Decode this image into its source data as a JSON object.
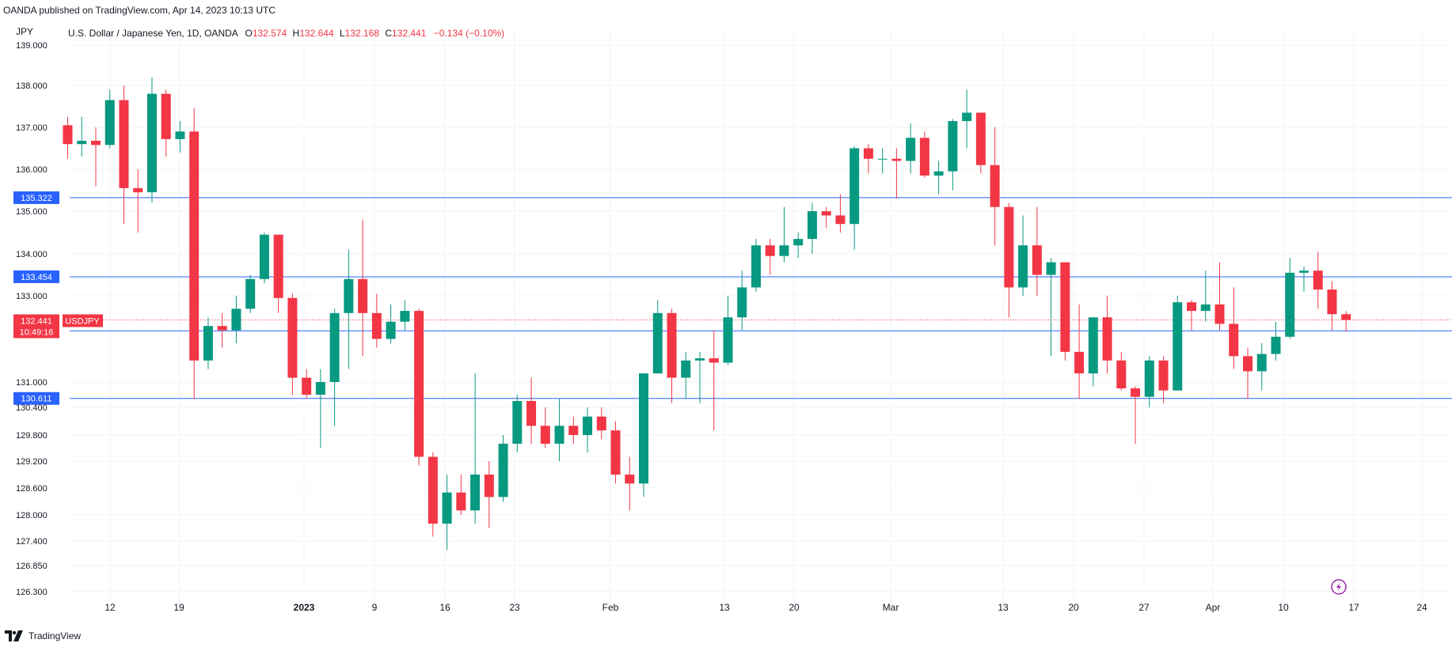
{
  "header": {
    "publish_text": "OANDA published on TradingView.com, Apr 14, 2023 10:13 UTC",
    "currency_unit": "JPY"
  },
  "legend": {
    "symbol_desc": "U.S. Dollar / Japanese Yen, 1D, OANDA",
    "open_label": "O",
    "open_value": "132.574",
    "high_label": "H",
    "high_value": "132.644",
    "low_label": "L",
    "low_value": "132.168",
    "close_label": "C",
    "close_value": "132.441",
    "change_text": "−0.134 (−0.10%)"
  },
  "price_badge": {
    "price": "132.441",
    "countdown": "10:49:16",
    "symbol": "USDJPY"
  },
  "footer": {
    "brand": "TradingView"
  },
  "colors": {
    "up": "#089981",
    "down": "#f23645",
    "hline": "#2962ff",
    "grid": "#f0f3fa",
    "text": "#131722",
    "price_line": "#f23645",
    "flash_icon": "#9c27b0"
  },
  "icons": {
    "flash": "lightning-icon",
    "logo": "tradingview-logo-icon"
  },
  "chart_data": {
    "type": "candlestick",
    "symbol": "USDJPY",
    "interval": "1D",
    "y_ticks": [
      "139.000",
      "138.000",
      "137.000",
      "136.000",
      "135.000",
      "134.000",
      "133.000",
      "131.000",
      "130.400",
      "129.800",
      "129.200",
      "128.600",
      "128.000",
      "127.400",
      "126.850",
      "126.300"
    ],
    "x_ticks": [
      "12",
      "19",
      "2023",
      "9",
      "16",
      "23",
      "Feb",
      "13",
      "20",
      "Mar",
      "13",
      "20",
      "27",
      "Apr",
      "10",
      "17",
      "24"
    ],
    "horizontal_lines": [
      "135.322",
      "133.454",
      "132.188",
      "130.611"
    ],
    "current_price": 132.441,
    "candles": [
      {
        "o": 137.05,
        "h": 137.25,
        "l": 136.25,
        "c": 136.6
      },
      {
        "o": 136.6,
        "h": 137.25,
        "l": 136.3,
        "c": 136.68
      },
      {
        "o": 136.68,
        "h": 137.0,
        "l": 135.6,
        "c": 136.58
      },
      {
        "o": 136.58,
        "h": 137.9,
        "l": 136.5,
        "c": 137.65
      },
      {
        "o": 137.65,
        "h": 138.0,
        "l": 134.7,
        "c": 135.55
      },
      {
        "o": 135.55,
        "h": 136.0,
        "l": 134.5,
        "c": 135.45
      },
      {
        "o": 135.45,
        "h": 138.2,
        "l": 135.2,
        "c": 137.8
      },
      {
        "o": 137.8,
        "h": 137.9,
        "l": 136.3,
        "c": 136.72
      },
      {
        "o": 136.72,
        "h": 137.15,
        "l": 136.4,
        "c": 136.9
      },
      {
        "o": 136.9,
        "h": 137.45,
        "l": 130.6,
        "c": 131.5
      },
      {
        "o": 131.5,
        "h": 132.5,
        "l": 131.3,
        "c": 132.3
      },
      {
        "o": 132.3,
        "h": 132.6,
        "l": 131.8,
        "c": 132.2
      },
      {
        "o": 132.2,
        "h": 133.0,
        "l": 131.9,
        "c": 132.7
      },
      {
        "o": 132.7,
        "h": 133.5,
        "l": 132.6,
        "c": 133.4
      },
      {
        "o": 133.4,
        "h": 134.5,
        "l": 133.3,
        "c": 134.45
      },
      {
        "o": 134.45,
        "h": 134.45,
        "l": 132.6,
        "c": 132.95
      },
      {
        "o": 132.95,
        "h": 133.05,
        "l": 130.7,
        "c": 131.1
      },
      {
        "o": 131.1,
        "h": 131.3,
        "l": 130.6,
        "c": 130.7
      },
      {
        "o": 130.7,
        "h": 131.3,
        "l": 129.5,
        "c": 131.0
      },
      {
        "o": 131.0,
        "h": 132.7,
        "l": 130.0,
        "c": 132.6
      },
      {
        "o": 132.6,
        "h": 134.1,
        "l": 131.3,
        "c": 133.4
      },
      {
        "o": 133.4,
        "h": 134.8,
        "l": 131.6,
        "c": 132.6
      },
      {
        "o": 132.6,
        "h": 133.05,
        "l": 131.8,
        "c": 132.0
      },
      {
        "o": 132.0,
        "h": 132.8,
        "l": 131.9,
        "c": 132.4
      },
      {
        "o": 132.4,
        "h": 132.9,
        "l": 132.2,
        "c": 132.65
      },
      {
        "o": 132.65,
        "h": 132.7,
        "l": 129.1,
        "c": 129.3
      },
      {
        "o": 129.3,
        "h": 129.4,
        "l": 127.5,
        "c": 127.8
      },
      {
        "o": 127.8,
        "h": 128.9,
        "l": 127.2,
        "c": 128.5
      },
      {
        "o": 128.5,
        "h": 128.9,
        "l": 128.0,
        "c": 128.1
      },
      {
        "o": 128.1,
        "h": 131.2,
        "l": 127.8,
        "c": 128.9
      },
      {
        "o": 128.9,
        "h": 129.2,
        "l": 127.7,
        "c": 128.4
      },
      {
        "o": 128.4,
        "h": 129.8,
        "l": 128.3,
        "c": 129.6
      },
      {
        "o": 129.6,
        "h": 130.7,
        "l": 129.4,
        "c": 130.55
      },
      {
        "o": 130.55,
        "h": 131.1,
        "l": 129.6,
        "c": 130.0
      },
      {
        "o": 130.0,
        "h": 130.4,
        "l": 129.5,
        "c": 129.6
      },
      {
        "o": 129.6,
        "h": 130.6,
        "l": 129.2,
        "c": 130.0
      },
      {
        "o": 130.0,
        "h": 130.2,
        "l": 129.6,
        "c": 129.8
      },
      {
        "o": 129.8,
        "h": 130.4,
        "l": 129.4,
        "c": 130.2
      },
      {
        "o": 130.2,
        "h": 130.4,
        "l": 129.7,
        "c": 129.9
      },
      {
        "o": 129.9,
        "h": 130.1,
        "l": 128.7,
        "c": 128.9
      },
      {
        "o": 128.9,
        "h": 129.3,
        "l": 128.1,
        "c": 128.7
      },
      {
        "o": 128.7,
        "h": 131.2,
        "l": 128.4,
        "c": 131.2
      },
      {
        "o": 131.2,
        "h": 132.9,
        "l": 131.2,
        "c": 132.6
      },
      {
        "o": 132.6,
        "h": 132.7,
        "l": 130.5,
        "c": 131.1
      },
      {
        "o": 131.1,
        "h": 131.7,
        "l": 130.6,
        "c": 131.5
      },
      {
        "o": 131.5,
        "h": 131.7,
        "l": 130.5,
        "c": 131.55
      },
      {
        "o": 131.55,
        "h": 132.2,
        "l": 129.9,
        "c": 131.45
      },
      {
        "o": 131.45,
        "h": 133.0,
        "l": 131.4,
        "c": 132.5
      },
      {
        "o": 132.5,
        "h": 133.6,
        "l": 132.2,
        "c": 133.2
      },
      {
        "o": 133.2,
        "h": 134.35,
        "l": 133.1,
        "c": 134.2
      },
      {
        "o": 134.2,
        "h": 134.35,
        "l": 133.5,
        "c": 133.95
      },
      {
        "o": 133.95,
        "h": 135.1,
        "l": 133.8,
        "c": 134.2
      },
      {
        "o": 134.2,
        "h": 134.5,
        "l": 133.9,
        "c": 134.35
      },
      {
        "o": 134.35,
        "h": 135.2,
        "l": 134.0,
        "c": 135.0
      },
      {
        "o": 135.0,
        "h": 135.1,
        "l": 134.6,
        "c": 134.9
      },
      {
        "o": 134.9,
        "h": 135.4,
        "l": 134.5,
        "c": 134.7
      },
      {
        "o": 134.7,
        "h": 136.55,
        "l": 134.1,
        "c": 136.5
      },
      {
        "o": 136.5,
        "h": 136.6,
        "l": 135.9,
        "c": 136.25
      },
      {
        "o": 136.25,
        "h": 136.5,
        "l": 135.9,
        "c": 136.25
      },
      {
        "o": 136.25,
        "h": 136.5,
        "l": 135.3,
        "c": 136.2
      },
      {
        "o": 136.2,
        "h": 137.1,
        "l": 135.9,
        "c": 136.75
      },
      {
        "o": 136.75,
        "h": 136.9,
        "l": 135.8,
        "c": 135.85
      },
      {
        "o": 135.85,
        "h": 136.2,
        "l": 135.4,
        "c": 135.95
      },
      {
        "o": 135.95,
        "h": 137.2,
        "l": 135.5,
        "c": 137.15
      },
      {
        "o": 137.15,
        "h": 137.9,
        "l": 136.5,
        "c": 137.35
      },
      {
        "o": 137.35,
        "h": 137.35,
        "l": 135.9,
        "c": 136.1
      },
      {
        "o": 136.1,
        "h": 137.0,
        "l": 134.2,
        "c": 135.1
      },
      {
        "o": 135.1,
        "h": 135.2,
        "l": 132.5,
        "c": 133.2
      },
      {
        "o": 133.2,
        "h": 134.9,
        "l": 133.0,
        "c": 134.2
      },
      {
        "o": 134.2,
        "h": 135.1,
        "l": 133.0,
        "c": 133.5
      },
      {
        "o": 133.5,
        "h": 133.9,
        "l": 131.6,
        "c": 133.8
      },
      {
        "o": 133.8,
        "h": 133.8,
        "l": 131.5,
        "c": 131.7
      },
      {
        "o": 131.7,
        "h": 132.8,
        "l": 130.6,
        "c": 131.2
      },
      {
        "o": 131.2,
        "h": 132.5,
        "l": 130.9,
        "c": 132.5
      },
      {
        "o": 132.5,
        "h": 133.0,
        "l": 131.2,
        "c": 131.5
      },
      {
        "o": 131.5,
        "h": 131.7,
        "l": 130.8,
        "c": 130.85
      },
      {
        "o": 130.85,
        "h": 130.9,
        "l": 129.6,
        "c": 130.65
      },
      {
        "o": 130.65,
        "h": 131.6,
        "l": 130.4,
        "c": 131.5
      },
      {
        "o": 131.5,
        "h": 131.6,
        "l": 130.5,
        "c": 130.8
      },
      {
        "o": 130.8,
        "h": 133.0,
        "l": 130.8,
        "c": 132.85
      },
      {
        "o": 132.85,
        "h": 132.9,
        "l": 132.2,
        "c": 132.65
      },
      {
        "o": 132.65,
        "h": 133.6,
        "l": 132.4,
        "c": 132.8
      },
      {
        "o": 132.8,
        "h": 133.8,
        "l": 132.2,
        "c": 132.35
      },
      {
        "o": 132.35,
        "h": 133.2,
        "l": 131.3,
        "c": 131.6
      },
      {
        "o": 131.6,
        "h": 131.8,
        "l": 130.6,
        "c": 131.25
      },
      {
        "o": 131.25,
        "h": 131.9,
        "l": 130.8,
        "c": 131.65
      },
      {
        "o": 131.65,
        "h": 132.4,
        "l": 131.5,
        "c": 132.05
      },
      {
        "o": 132.05,
        "h": 133.9,
        "l": 132.0,
        "c": 133.55
      },
      {
        "o": 133.55,
        "h": 133.7,
        "l": 133.1,
        "c": 133.6
      },
      {
        "o": 133.6,
        "h": 134.05,
        "l": 132.7,
        "c": 133.15
      },
      {
        "o": 133.15,
        "h": 133.35,
        "l": 132.2,
        "c": 132.574
      },
      {
        "o": 132.574,
        "h": 132.644,
        "l": 132.168,
        "c": 132.441
      }
    ]
  }
}
